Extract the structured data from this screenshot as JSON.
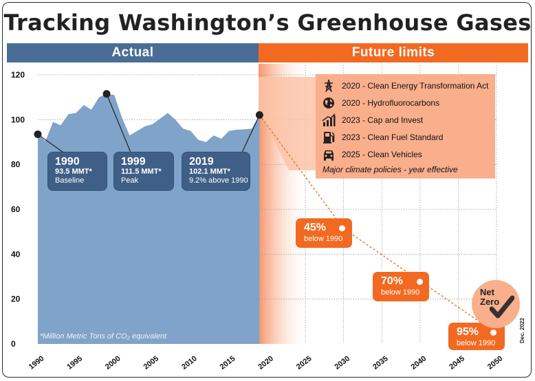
{
  "title": "Tracking Washington’s Greenhouse Gases",
  "bands": {
    "actual": "Actual",
    "future": "Future limits"
  },
  "callouts": [
    {
      "year": "1990",
      "value": "93.5 MMT*",
      "note": "Baseline"
    },
    {
      "year": "1999",
      "value": "111.5 MMT*",
      "note": "Peak"
    },
    {
      "year": "2019",
      "value": "102.1 MMT*",
      "note": "9.2% above 1990"
    }
  ],
  "targets": [
    {
      "pct": "45%",
      "label": "below 1990"
    },
    {
      "pct": "70%",
      "label": "below 1990"
    },
    {
      "pct": "95%",
      "label": "below 1990"
    }
  ],
  "netzero": {
    "line1": "Net",
    "line2": "Zero"
  },
  "policies": {
    "items": [
      {
        "text": "2020 - Clean Energy Transformation Act",
        "icon": "transmission-tower-icon"
      },
      {
        "text": "2020 - Hydrofluorocarbons",
        "icon": "globe-icon"
      },
      {
        "text": "2023 - Cap and Invest",
        "icon": "rising-bars-icon"
      },
      {
        "text": "2023 - Clean Fuel Standard",
        "icon": "fuel-pump-icon"
      },
      {
        "text": "2025 - Clean Vehicles",
        "icon": "car-icon"
      }
    ],
    "caption": "Major climate policies - year effective"
  },
  "footnote": "*Million Metric Tons of CO₂ equivalent",
  "date_stamp": "Dec. 2022",
  "colors": {
    "actual": "#4a6d96",
    "area": "#7fa3c9",
    "future": "#f26a21",
    "policy_bg": "#f9ae8c"
  },
  "chart_data": {
    "type": "area",
    "ylim": [
      0,
      120
    ],
    "yticks": [
      0,
      20,
      40,
      60,
      80,
      100,
      120
    ],
    "xlim": [
      1990,
      2050
    ],
    "xticks": [
      1990,
      1995,
      2000,
      2005,
      2010,
      2015,
      2020,
      2025,
      2030,
      2035,
      2040,
      2045,
      2050
    ],
    "grid": true,
    "series": [
      {
        "x": [
          1990,
          1991,
          1992,
          1993,
          1994,
          1995,
          1996,
          1997,
          1998,
          1999,
          2000,
          2001,
          2002,
          2003,
          2004,
          2005,
          2006,
          2007,
          2008,
          2009,
          2010,
          2011,
          2012,
          2013,
          2014,
          2015,
          2016,
          2017,
          2018,
          2019
        ],
        "values": [
          93.5,
          90.5,
          99,
          97.5,
          102.5,
          103,
          106.5,
          104.5,
          110,
          111.5,
          111,
          101,
          93,
          95,
          97,
          98,
          100.5,
          103,
          100,
          96,
          95,
          91,
          90,
          93,
          91.5,
          95,
          95.5,
          95.7,
          96,
          102.1
        ]
      }
    ],
    "targets": [
      {
        "x": 2030,
        "y": 51.4,
        "label": "45% below 1990"
      },
      {
        "x": 2040,
        "y": 28.1,
        "label": "70% below 1990"
      },
      {
        "x": 2050,
        "y": 4.7,
        "label": "95% below 1990"
      }
    ],
    "highlights": [
      {
        "x": 1990,
        "y": 93.5
      },
      {
        "x": 1999,
        "y": 111.5
      },
      {
        "x": 2019,
        "y": 102.1
      }
    ]
  }
}
